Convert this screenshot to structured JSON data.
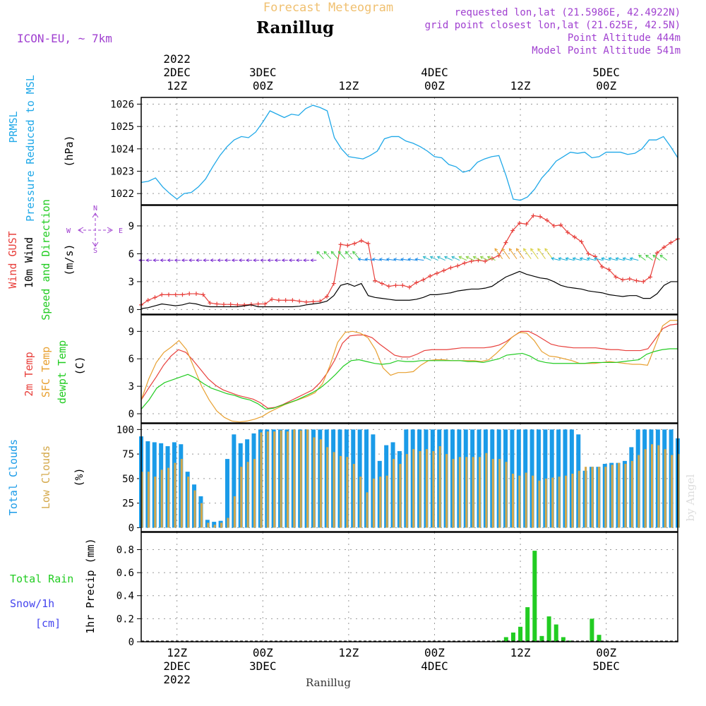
{
  "header": {
    "product": "Forecast Meteogram",
    "location": "Ranillug",
    "model": "ICON-EU, ~ 7km",
    "info": [
      "requested lon,lat (21.5986E, 42.4922N)",
      "grid point closest lon,lat (21.625E, 42.5N)",
      "Point Altitude 444m",
      "Model Point Altitude 541m"
    ],
    "credit": "by Angel",
    "footer_location": "Ranillug"
  },
  "time_axis": {
    "top_labels": [
      {
        "lines": [
          "2022",
          "2DEC",
          "12Z"
        ]
      },
      {
        "lines": [
          "3DEC",
          "00Z"
        ]
      },
      {
        "lines": [
          "12Z"
        ]
      },
      {
        "lines": [
          "4DEC",
          "00Z"
        ]
      },
      {
        "lines": [
          "12Z"
        ]
      },
      {
        "lines": [
          "5DEC",
          "00Z"
        ]
      }
    ],
    "bottom_labels": [
      {
        "lines": [
          "12Z",
          "2DEC",
          "2022"
        ]
      },
      {
        "lines": [
          "00Z",
          "3DEC"
        ]
      },
      {
        "lines": [
          "12Z"
        ]
      },
      {
        "lines": [
          "00Z",
          "4DEC"
        ]
      },
      {
        "lines": [
          "12Z"
        ]
      },
      {
        "lines": [
          "00Z",
          "5DEC"
        ]
      }
    ]
  },
  "panel_labels": {
    "pressure": {
      "left1": "PRMSL",
      "left2": "Pressure Reduced to MSL",
      "unit": "(hPa)"
    },
    "wind": {
      "gust": "Wind GUST",
      "wind10": "10m Wind",
      "dir": "Speed and Direction",
      "unit": "(m/s)",
      "compass": {
        "n": "N",
        "s": "S",
        "w": "W",
        "e": "E"
      }
    },
    "temp": {
      "t2m": "2m Temp",
      "sfc": "SFC Temp",
      "dew": "dewpt Temp",
      "unit": "(C)"
    },
    "clouds": {
      "total": "Total Clouds",
      "low": "Low Clouds",
      "unit": "(%)"
    },
    "precip": {
      "rain": "Total  Rain",
      "snow": "Snow/1h",
      "snow_unit": "[cm]",
      "ylabel": "1hr Precip (mm)"
    }
  },
  "colors": {
    "pressure": "#1fa8e8",
    "gust": "#e8403c",
    "wind10": "#000000",
    "t2m": "#e8403c",
    "sfc": "#e8a030",
    "dew": "#22cc22",
    "total_clouds": "#1a9be8",
    "low_clouds": "#d4a84a",
    "rain": "#22cc22",
    "snow": "#4444ee",
    "purple": "#a040d0",
    "header_orange": "#f0c070"
  },
  "chart_data": [
    {
      "type": "line",
      "title": "PRMSL Pressure Reduced to MSL",
      "ylabel": "(hPa)",
      "x_range_hours": [
        0,
        75
      ],
      "ylim": [
        1021.5,
        1026.3
      ],
      "yticks": [
        1022,
        1023,
        1024,
        1025,
        1026
      ],
      "series": [
        {
          "name": "PRMSL",
          "values": [
            1022.5,
            1022.55,
            1022.7,
            1022.3,
            1022.0,
            1021.75,
            1022.0,
            1022.05,
            1022.3,
            1022.65,
            1023.2,
            1023.7,
            1024.1,
            1024.4,
            1024.55,
            1024.5,
            1024.75,
            1025.2,
            1025.7,
            1025.55,
            1025.4,
            1025.55,
            1025.5,
            1025.8,
            1025.95,
            1025.85,
            1025.7,
            1024.5,
            1024.0,
            1023.65,
            1023.6,
            1023.55,
            1023.7,
            1023.9,
            1024.45,
            1024.55,
            1024.55,
            1024.35,
            1024.25,
            1024.1,
            1023.9,
            1023.65,
            1023.6,
            1023.3,
            1023.2,
            1022.95,
            1023.05,
            1023.4,
            1023.55,
            1023.65,
            1023.7,
            1022.8,
            1021.75,
            1021.7,
            1021.85,
            1022.2,
            1022.7,
            1023.05,
            1023.45,
            1023.65,
            1023.85,
            1023.8,
            1023.85,
            1023.6,
            1023.65,
            1023.85,
            1023.85,
            1023.85,
            1023.75,
            1023.8,
            1024.0,
            1024.4,
            1024.4,
            1024.55,
            1024.1,
            1023.6
          ]
        }
      ]
    },
    {
      "type": "line",
      "title": "Wind GUST / 10m Wind Speed and Direction",
      "ylabel": "(m/s)",
      "x_range_hours": [
        0,
        75
      ],
      "ylim": [
        -0.5,
        11.2
      ],
      "yticks": [
        0,
        3,
        6,
        9
      ],
      "series": [
        {
          "name": "Wind GUST",
          "values": [
            0.5,
            1.0,
            1.3,
            1.6,
            1.6,
            1.6,
            1.6,
            1.7,
            1.7,
            1.6,
            0.7,
            0.6,
            0.55,
            0.55,
            0.5,
            0.5,
            0.55,
            0.6,
            0.6,
            1.1,
            1.0,
            1.0,
            1.0,
            0.9,
            0.8,
            0.85,
            0.9,
            1.4,
            2.8,
            7.0,
            6.9,
            7.1,
            7.4,
            7.1,
            3.1,
            2.8,
            2.5,
            2.6,
            2.6,
            2.4,
            2.9,
            3.2,
            3.6,
            3.9,
            4.2,
            4.5,
            4.7,
            5.0,
            5.2,
            5.3,
            5.2,
            5.5,
            5.8,
            7.2,
            8.5,
            9.3,
            9.2,
            10.1,
            10.0,
            9.6,
            9.0,
            9.1,
            8.3,
            7.8,
            7.3,
            6.0,
            5.7,
            4.6,
            4.3,
            3.5,
            3.2,
            3.3,
            3.1,
            3.0,
            3.5,
            6.1,
            6.7,
            7.2,
            7.6
          ]
        },
        {
          "name": "10m Wind",
          "values": [
            0.1,
            0.2,
            0.4,
            0.6,
            0.5,
            0.4,
            0.5,
            0.7,
            0.6,
            0.4,
            0.3,
            0.3,
            0.3,
            0.3,
            0.3,
            0.4,
            0.5,
            0.3,
            0.3,
            0.3,
            0.3,
            0.3,
            0.3,
            0.35,
            0.5,
            0.6,
            0.7,
            0.9,
            1.5,
            2.6,
            2.8,
            2.5,
            2.8,
            1.5,
            1.3,
            1.2,
            1.1,
            1.0,
            1.0,
            1.0,
            1.1,
            1.3,
            1.6,
            1.6,
            1.7,
            1.8,
            2.0,
            2.1,
            2.2,
            2.2,
            2.3,
            2.5,
            3.0,
            3.5,
            3.8,
            4.1,
            3.8,
            3.6,
            3.4,
            3.3,
            3.0,
            2.6,
            2.4,
            2.3,
            2.2,
            2.0,
            1.9,
            1.8,
            1.6,
            1.5,
            1.4,
            1.5,
            1.5,
            1.2,
            1.2,
            1.7,
            2.6,
            3.0,
            3.0
          ]
        }
      ]
    },
    {
      "type": "line",
      "title": "2m Temp / SFC Temp / dewpt Temp",
      "ylabel": "(C)",
      "x_range_hours": [
        0,
        75
      ],
      "ylim": [
        -1.0,
        10.8
      ],
      "yticks": [
        0,
        3,
        6,
        9
      ],
      "series": [
        {
          "name": "2m Temp",
          "values": [
            1.5,
            2.8,
            4.0,
            5.3,
            6.3,
            7.0,
            6.7,
            5.8,
            4.8,
            3.8,
            3.1,
            2.6,
            2.3,
            2.0,
            1.8,
            1.6,
            1.2,
            0.6,
            0.7,
            1.0,
            1.4,
            1.8,
            2.2,
            2.6,
            3.4,
            4.5,
            5.9,
            7.7,
            8.5,
            8.6,
            8.6,
            8.3,
            7.6,
            7.0,
            6.4,
            6.2,
            6.2,
            6.5,
            6.9,
            7.0,
            7.0,
            7.0,
            7.1,
            7.2,
            7.2,
            7.2,
            7.2,
            7.3,
            7.5,
            7.9,
            8.5,
            9.0,
            9.0,
            8.6,
            8.1,
            7.6,
            7.4,
            7.3,
            7.2,
            7.2,
            7.2,
            7.2,
            7.1,
            7.0,
            7.0,
            6.9,
            6.9,
            6.9,
            7.1,
            8.2,
            9.3,
            9.7,
            9.8
          ]
        },
        {
          "name": "SFC Temp",
          "values": [
            1.5,
            3.8,
            5.6,
            6.7,
            7.3,
            8.0,
            7.0,
            5.0,
            3.0,
            1.5,
            0.3,
            -0.4,
            -0.8,
            -0.9,
            -0.8,
            -0.6,
            -0.3,
            0.2,
            0.6,
            1.0,
            1.3,
            1.6,
            1.9,
            2.3,
            3.3,
            5.3,
            7.8,
            8.9,
            9.0,
            8.8,
            8.3,
            7.0,
            5.0,
            4.2,
            4.5,
            4.5,
            4.6,
            5.3,
            5.8,
            5.9,
            5.9,
            5.8,
            5.8,
            5.8,
            5.8,
            5.7,
            5.9,
            6.6,
            7.4,
            8.3,
            8.9,
            8.8,
            8.0,
            6.8,
            6.3,
            6.2,
            6.0,
            5.8,
            5.5,
            5.5,
            5.5,
            5.6,
            5.7,
            5.6,
            5.5,
            5.4,
            5.4,
            5.3,
            7.4,
            9.6,
            10.2,
            10.2
          ]
        },
        {
          "name": "dewpt Temp",
          "values": [
            0.5,
            1.5,
            2.8,
            3.4,
            3.7,
            4.0,
            4.3,
            3.9,
            3.3,
            2.8,
            2.5,
            2.2,
            2.0,
            1.7,
            1.5,
            1.1,
            0.5,
            0.6,
            0.9,
            1.2,
            1.5,
            1.9,
            2.3,
            2.8,
            3.5,
            4.3,
            5.2,
            5.8,
            5.9,
            5.7,
            5.5,
            5.4,
            5.5,
            5.8,
            5.7,
            5.7,
            5.8,
            5.8,
            5.8,
            5.8,
            5.8,
            5.8,
            5.7,
            5.7,
            5.6,
            5.8,
            6.0,
            6.4,
            6.5,
            6.6,
            6.3,
            5.8,
            5.6,
            5.5,
            5.5,
            5.5,
            5.5,
            5.5,
            5.6,
            5.6,
            5.6,
            5.6,
            5.7,
            5.8,
            5.9,
            6.5,
            6.8,
            7.0,
            7.1,
            7.1
          ]
        }
      ]
    },
    {
      "type": "bar",
      "title": "Total Clouds / Low Clouds",
      "ylabel": "(%)",
      "x_range_hours": [
        0,
        75
      ],
      "ylim": [
        -4,
        106
      ],
      "yticks": [
        0,
        25,
        50,
        75,
        100
      ],
      "series": [
        {
          "name": "Total Clouds",
          "values": [
            93,
            88,
            87,
            86,
            83,
            87,
            85,
            57,
            44,
            32,
            8,
            6,
            7,
            70,
            95,
            86,
            90,
            96,
            100,
            100,
            100,
            100,
            100,
            100,
            100,
            100,
            100,
            100,
            100,
            100,
            100,
            100,
            100,
            100,
            100,
            95,
            68,
            84,
            87,
            78,
            100,
            100,
            100,
            100,
            100,
            100,
            100,
            100,
            100,
            100,
            100,
            100,
            100,
            100,
            100,
            100,
            100,
            100,
            100,
            100,
            100,
            100,
            100,
            100,
            100,
            100,
            95,
            58,
            62,
            62,
            65,
            66,
            66,
            68,
            82,
            100,
            100,
            100,
            100,
            100,
            100,
            91
          ]
        },
        {
          "name": "Low Clouds",
          "values": [
            57,
            57,
            52,
            59,
            61,
            66,
            70,
            52,
            38,
            25,
            5,
            3,
            5,
            10,
            32,
            62,
            67,
            70,
            97,
            98,
            98,
            99,
            98,
            100,
            99,
            100,
            92,
            90,
            82,
            77,
            73,
            72,
            65,
            52,
            36,
            50,
            52,
            53,
            70,
            65,
            75,
            80,
            78,
            80,
            78,
            83,
            75,
            70,
            72,
            72,
            72,
            72,
            76,
            70,
            70,
            67,
            55,
            53,
            56,
            53,
            48,
            50,
            51,
            52,
            53,
            55,
            58,
            62,
            62,
            62,
            62,
            64,
            66,
            65,
            68,
            74,
            80,
            85,
            84,
            80,
            74,
            75
          ]
        }
      ]
    },
    {
      "type": "bar",
      "title": "1hr Precip",
      "ylabel": "1hr Precip (mm)",
      "x_range_hours": [
        0,
        75
      ],
      "ylim": [
        0,
        0.95
      ],
      "yticks": [
        0,
        0.2,
        0.4,
        0.6,
        0.8
      ],
      "series": [
        {
          "name": "Total Rain",
          "values": [
            0,
            0,
            0,
            0,
            0,
            0,
            0,
            0,
            0,
            0,
            0,
            0,
            0,
            0,
            0,
            0,
            0,
            0,
            0,
            0,
            0,
            0,
            0,
            0,
            0,
            0,
            0,
            0,
            0,
            0,
            0,
            0,
            0,
            0,
            0,
            0,
            0,
            0,
            0,
            0,
            0,
            0,
            0,
            0,
            0,
            0,
            0,
            0,
            0,
            0,
            0.01,
            0.04,
            0.08,
            0.13,
            0.3,
            0.79,
            0.05,
            0.22,
            0.15,
            0.04,
            0.01,
            0,
            0,
            0.2,
            0.06,
            0,
            0,
            0,
            0,
            0,
            0,
            0,
            0,
            0,
            0,
            0
          ]
        }
      ]
    }
  ]
}
